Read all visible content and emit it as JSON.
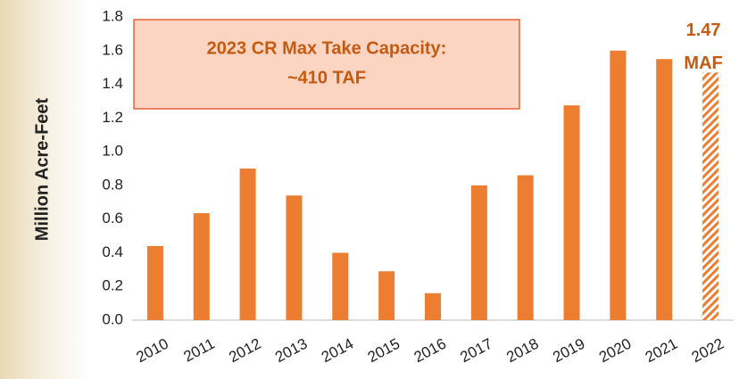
{
  "chart_data": {
    "type": "bar",
    "y_label": "Million Acre-Feet",
    "annotation": [
      "2023 CR Max Take Capacity:",
      "~410 TAF"
    ],
    "categories": [
      "2010",
      "2011",
      "2012",
      "2013",
      "2014",
      "2015",
      "2016",
      "2017",
      "2018",
      "2019",
      "2020",
      "2021",
      "2022"
    ],
    "values": [
      0.44,
      0.635,
      0.9,
      0.74,
      0.4,
      0.29,
      0.16,
      0.8,
      0.86,
      1.275,
      1.6,
      1.55,
      1.47
    ],
    "value_labels": [
      null,
      null,
      null,
      null,
      null,
      null,
      null,
      null,
      null,
      null,
      null,
      null,
      "1.47 MAF"
    ],
    "hatched": [
      false,
      false,
      false,
      false,
      false,
      false,
      false,
      false,
      false,
      false,
      false,
      false,
      true
    ],
    "color": "#ed7d31",
    "ylim": [
      0,
      1.8
    ],
    "yticks": [
      {
        "value": 0,
        "label": "0.0"
      },
      0.2,
      0.4,
      0.6,
      0.8,
      {
        "value": 1,
        "label": "1.0"
      },
      1.2,
      1.4,
      1.6,
      1.8
    ],
    "grid": false
  }
}
